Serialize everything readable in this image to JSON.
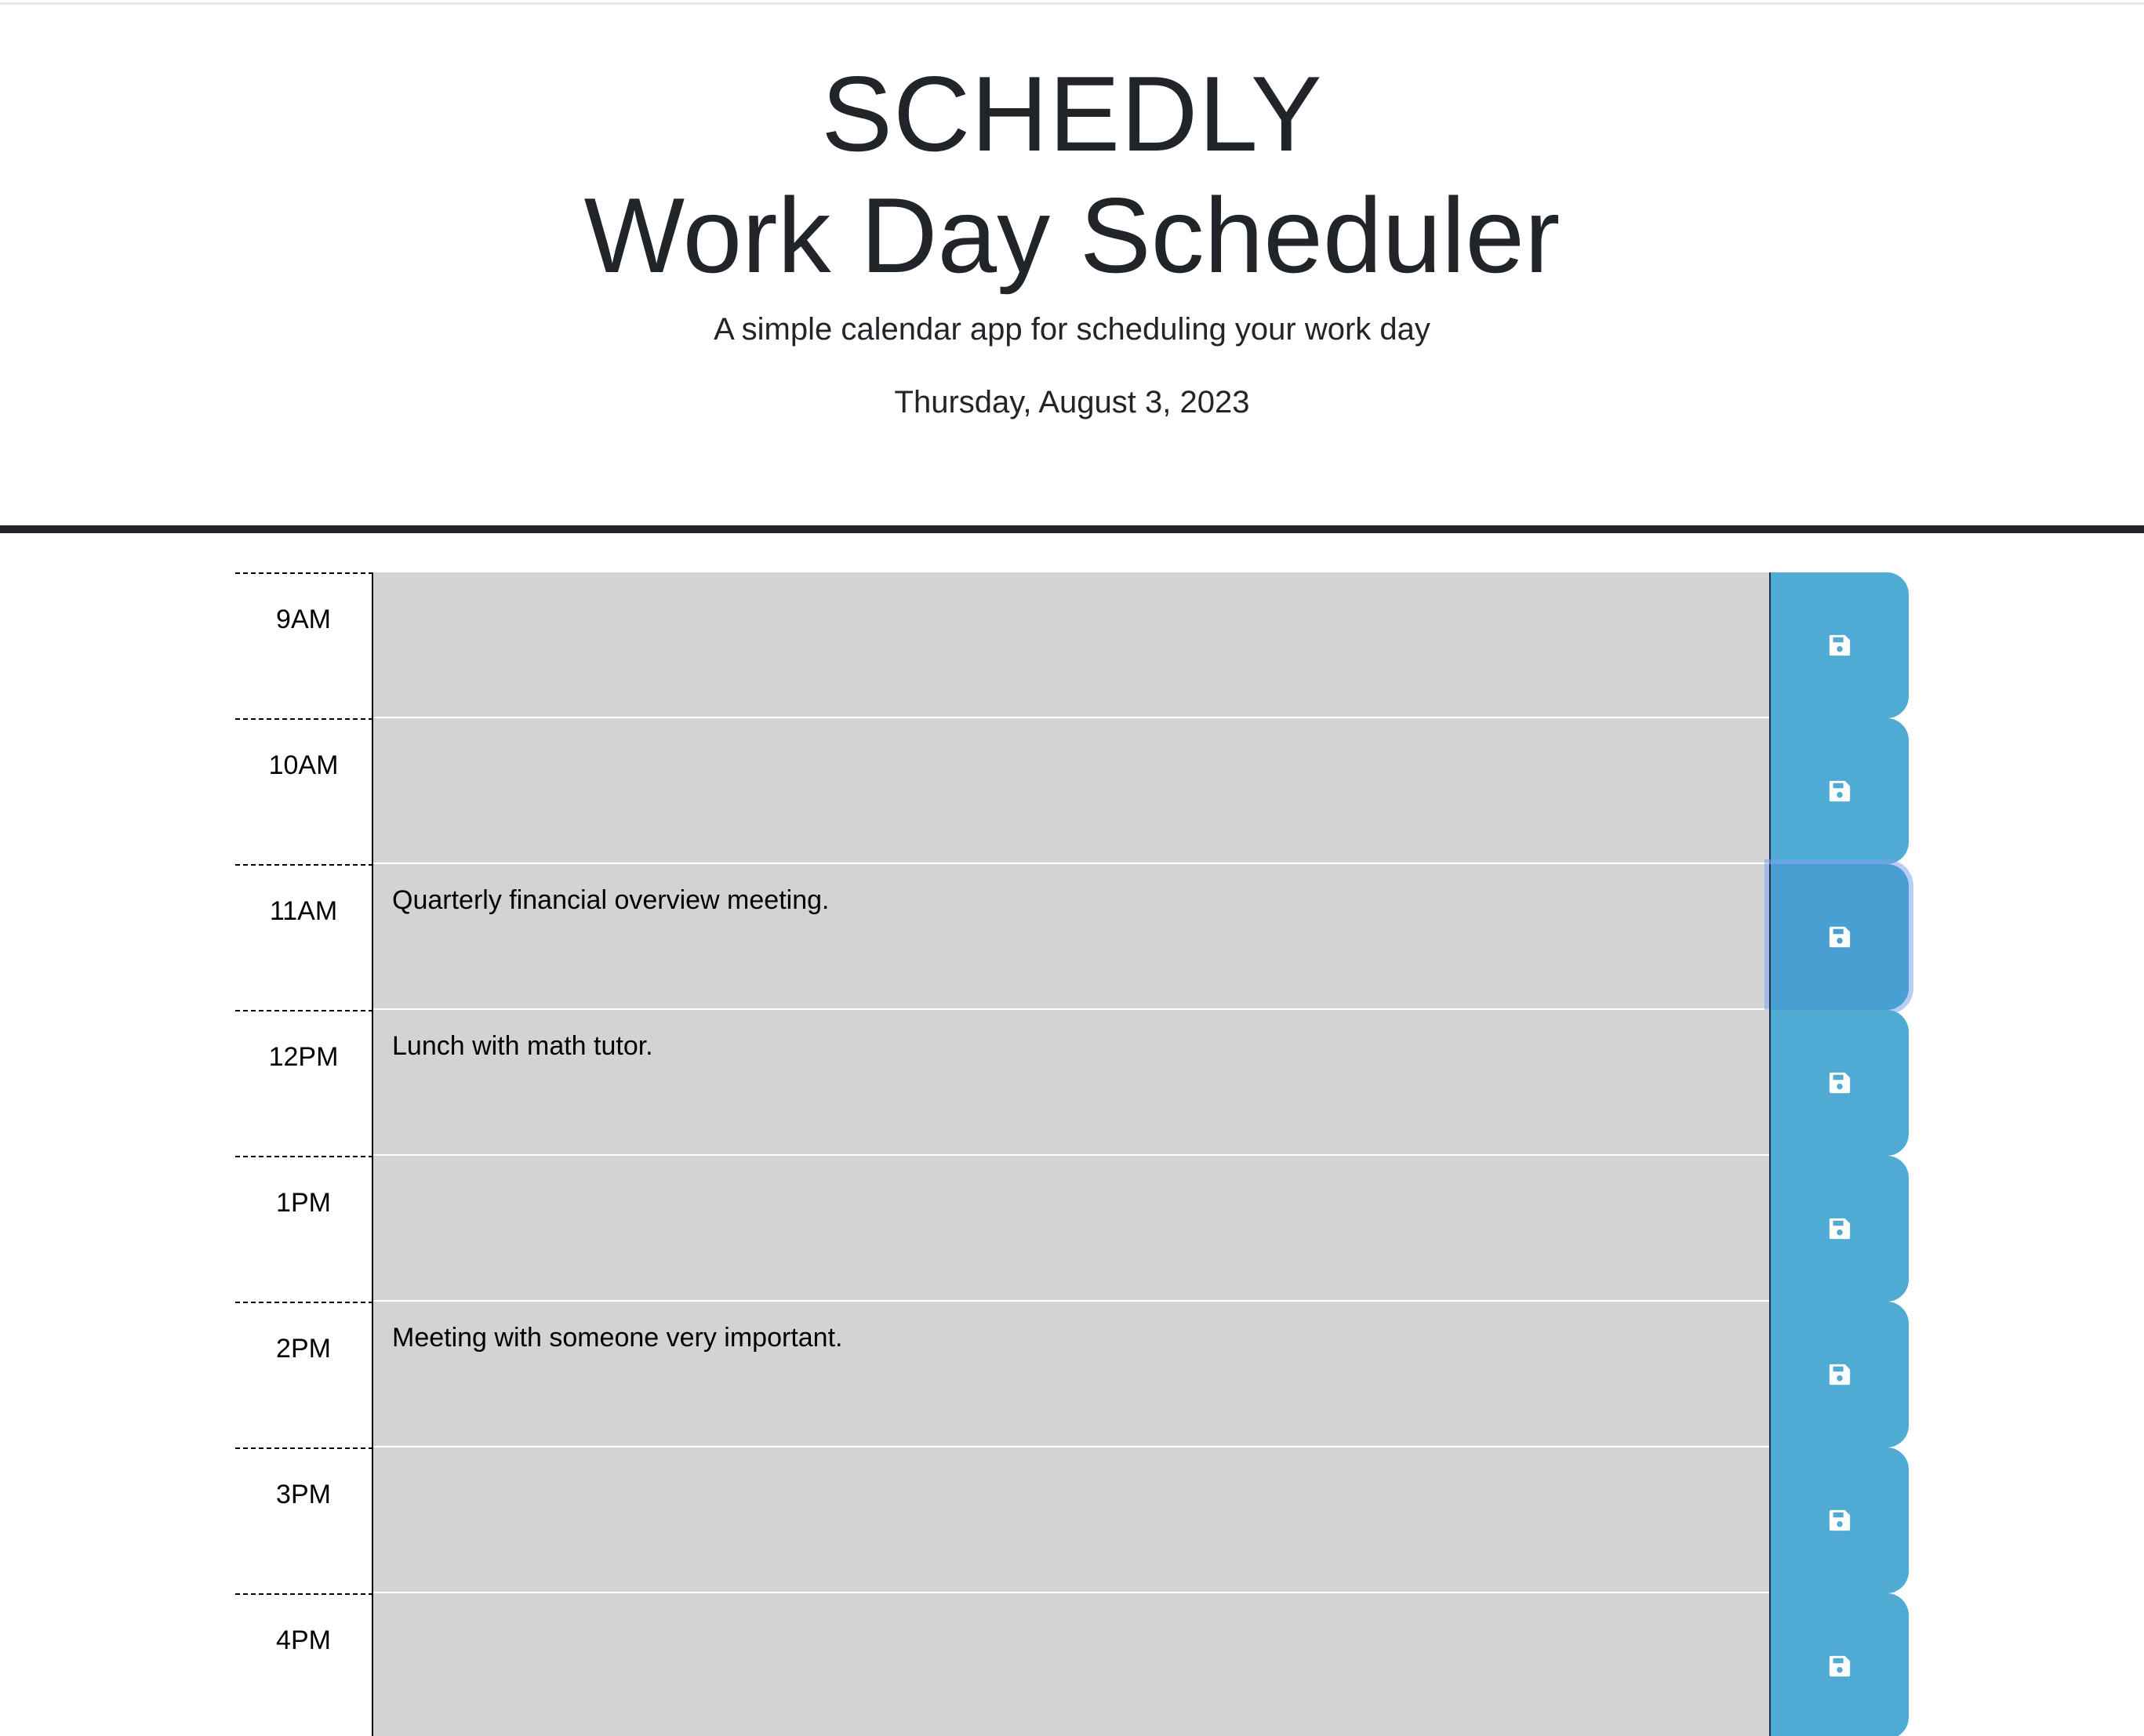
{
  "header": {
    "app_name": "SCHEDLY",
    "title": "Work Day Scheduler",
    "lead": "A simple calendar app for scheduling your work day",
    "current_day": "Thursday, August 3, 2023"
  },
  "colors": {
    "past_block": "#d3d3d3",
    "save_button": "#4fabd3",
    "header_border": "#212529"
  },
  "schedule": {
    "rows": [
      {
        "hour": "9AM",
        "text": ""
      },
      {
        "hour": "10AM",
        "text": ""
      },
      {
        "hour": "11AM",
        "text": "Quarterly financial overview meeting."
      },
      {
        "hour": "12PM",
        "text": "Lunch with math tutor."
      },
      {
        "hour": "1PM",
        "text": ""
      },
      {
        "hour": "2PM",
        "text": "Meeting with someone very important."
      },
      {
        "hour": "3PM",
        "text": ""
      },
      {
        "hour": "4PM",
        "text": ""
      }
    ],
    "save_icon": "floppy-disk-icon"
  }
}
